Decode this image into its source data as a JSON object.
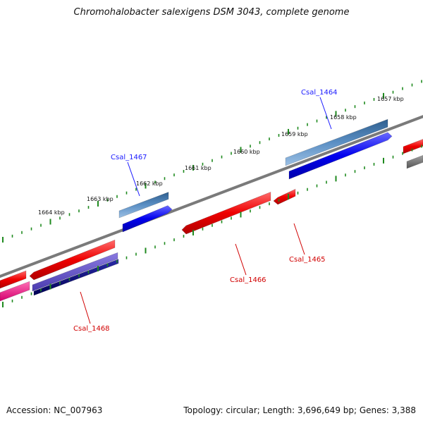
{
  "title": "Chromohalobacter salexigens DSM 3043, complete genome",
  "footer": {
    "accession": "Accession: NC_007963",
    "stats": "Topology: circular; Length: 3,696,649 bp; Genes: 3,388"
  },
  "ticks": [
    {
      "label": "1657 kbp",
      "kbp": 1657
    },
    {
      "label": "1658 kbp",
      "kbp": 1658
    },
    {
      "label": "1659 kbp",
      "kbp": 1659
    },
    {
      "label": "1660 kbp",
      "kbp": 1660
    },
    {
      "label": "1661 kbp",
      "kbp": 1661
    },
    {
      "label": "1662 kbp",
      "kbp": 1662
    },
    {
      "label": "1663 kbp",
      "kbp": 1663
    },
    {
      "label": "1664 kbp",
      "kbp": 1664
    }
  ],
  "genes": [
    {
      "label": "Csal_1464",
      "strand": "forward"
    },
    {
      "label": "Csal_1467",
      "strand": "forward"
    },
    {
      "label": "Csal_1465",
      "strand": "reverse"
    },
    {
      "label": "Csal_1466",
      "strand": "reverse"
    },
    {
      "label": "Csal_1468",
      "strand": "reverse"
    }
  ],
  "colors": {
    "forward_cds": "#0000ee",
    "forward_gene": "#4a7fb5",
    "reverse_cds": "#ee0000",
    "reverse_gene_alt": "#6a5acd",
    "reverse_navy": "#00007a",
    "magenta": "#ff1493",
    "backbone": "#777777",
    "tick_dots": "#1f8a1f"
  }
}
